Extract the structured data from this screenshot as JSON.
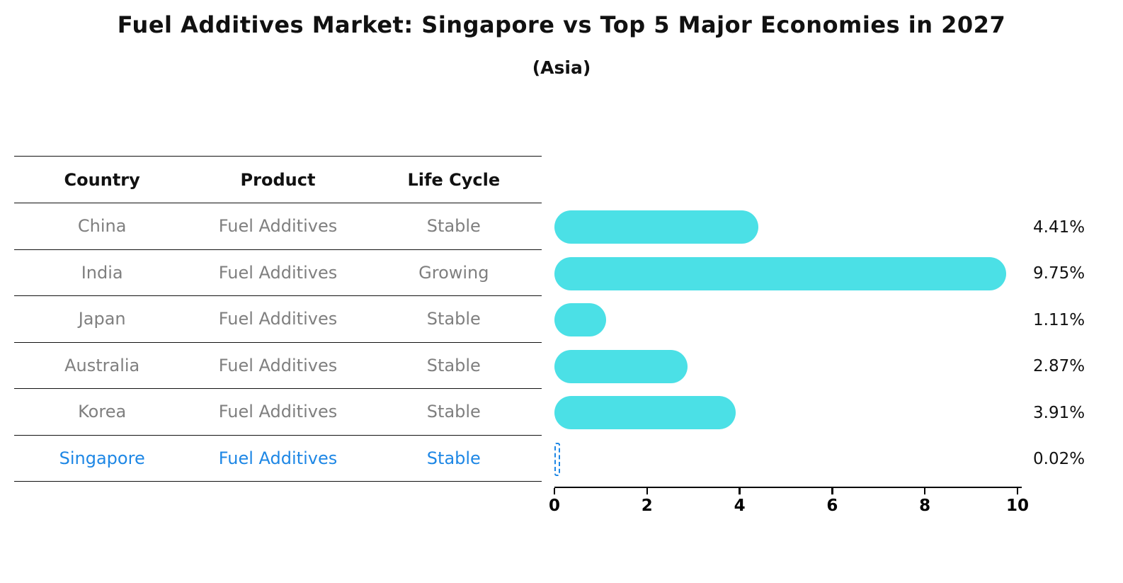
{
  "chart": {
    "title": "Fuel Additives Market: Singapore vs Top 5 Major Economies in 2027",
    "subtitle": "(Asia)"
  },
  "table": {
    "headers": [
      "Country",
      "Product",
      "Life Cycle"
    ],
    "rows": [
      {
        "country": "China",
        "product": "Fuel Additives",
        "life_cycle": "Stable",
        "highlight": false
      },
      {
        "country": "India",
        "product": "Fuel Additives",
        "life_cycle": "Growing",
        "highlight": false
      },
      {
        "country": "Japan",
        "product": "Fuel Additives",
        "life_cycle": "Stable",
        "highlight": false
      },
      {
        "country": "Australia",
        "product": "Fuel Additives",
        "life_cycle": "Stable",
        "highlight": false
      },
      {
        "country": "Korea",
        "product": "Fuel Additives",
        "life_cycle": "Stable",
        "highlight": false
      },
      {
        "country": "Singapore",
        "product": "Fuel Additives",
        "life_cycle": "Stable",
        "highlight": true
      }
    ]
  },
  "chart_data": {
    "type": "bar",
    "orientation": "horizontal",
    "title": "Fuel Additives Market: Singapore vs Top 5 Major Economies in 2027",
    "subtitle": "(Asia)",
    "categories": [
      "China",
      "India",
      "Japan",
      "Australia",
      "Korea",
      "Singapore"
    ],
    "values": [
      4.41,
      9.75,
      1.11,
      2.87,
      3.91,
      0.02
    ],
    "value_labels": [
      "4.41%",
      "9.75%",
      "1.11%",
      "2.87%",
      "3.91%",
      "0.02%"
    ],
    "xlim": [
      0,
      10
    ],
    "x_ticks": [
      0,
      2,
      4,
      6,
      8,
      10
    ],
    "highlight_index": 5,
    "grid": false,
    "legend": "none"
  },
  "colors": {
    "bar": "#4be0e6",
    "highlight": "#1e87e5",
    "muted_text": "#7f7f7f",
    "axis": "#000000"
  }
}
